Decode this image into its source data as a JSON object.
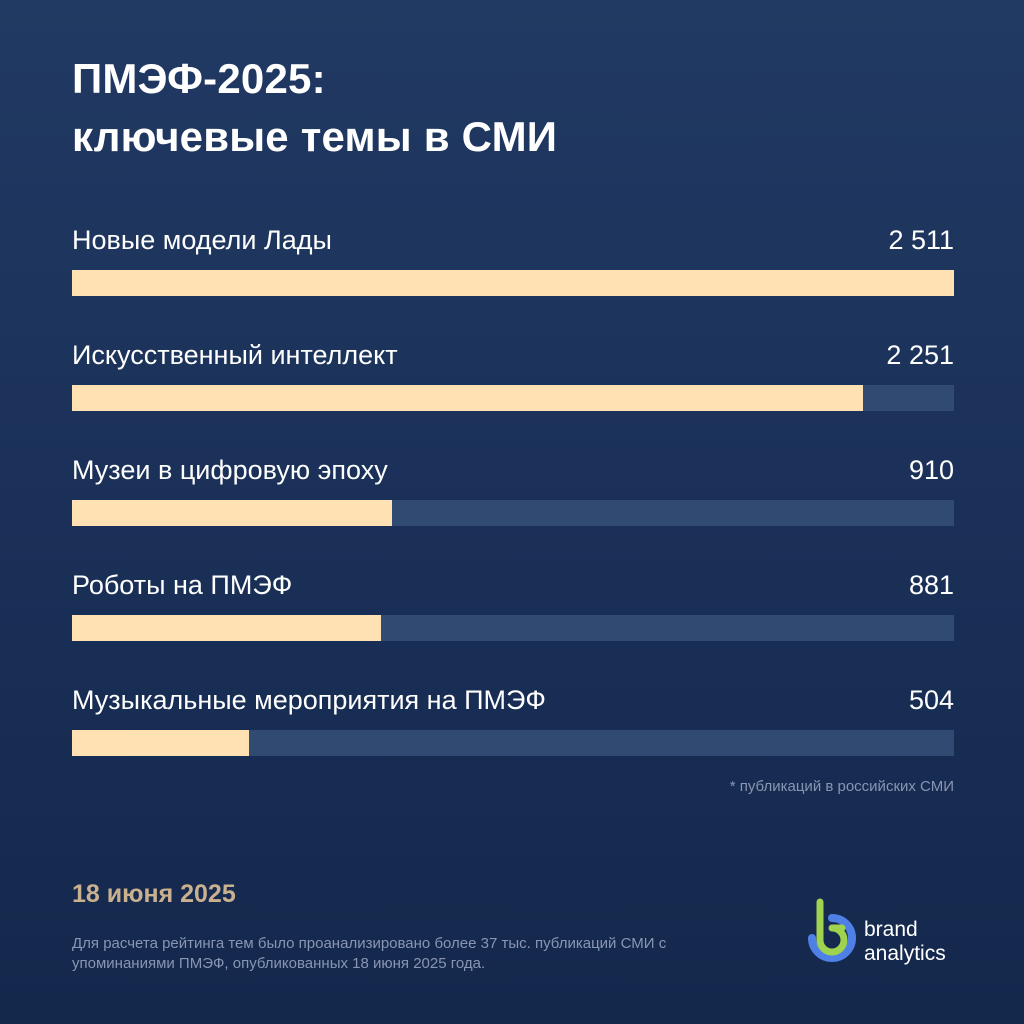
{
  "title": {
    "line1": "ПМЭФ-2025:",
    "line2": "ключевые темы в СМИ"
  },
  "chart_data": {
    "type": "bar",
    "orientation": "horizontal",
    "categories": [
      "Новые модели Лады",
      "Искусственный интеллект",
      "Музеи в цифровую эпоху",
      "Роботы на ПМЭФ",
      "Музыкальные мероприятия на ПМЭФ"
    ],
    "values": [
      2511,
      2251,
      910,
      881,
      504
    ],
    "value_labels": [
      "2 511",
      "2 251",
      "910",
      "881",
      "504"
    ],
    "ylim": [
      0,
      2511
    ],
    "grid": false,
    "colors": {
      "bar": "#ffe1b3",
      "track": "#314a72"
    }
  },
  "footnote": "* публикаций в российских СМИ",
  "date": "18 июня 2025",
  "note": "Для расчета рейтинга тем было проанализировано более 37 тыс. публикаций СМИ с упоминаниями ПМЭФ, опубликованных 18 июня 2025 года.",
  "brand": {
    "line1": "brand",
    "line2": "analytics",
    "icon": "brand-analytics-logo-icon"
  },
  "colors": {
    "background": "#1b3159",
    "date": "#c9b08f",
    "muted_text": "#8896b4"
  }
}
